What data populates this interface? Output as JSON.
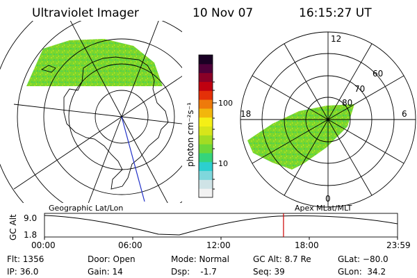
{
  "header": {
    "instrument": "Ultraviolet Imager",
    "date": "10 Nov 07",
    "time": "16:15:27 UT"
  },
  "colorbar": {
    "unit_label": "photon cm⁻²s⁻¹",
    "tick_100": "100",
    "tick_10": "10",
    "colors": [
      "#f2f2f2",
      "#cfe3e6",
      "#7fd7dc",
      "#2ccfcf",
      "#35d47c",
      "#6cd73a",
      "#a2dc23",
      "#d7e51a",
      "#f5ef16",
      "#f2b60c",
      "#ee7a0b",
      "#e43008",
      "#c0000f",
      "#8a0027",
      "#4e003a",
      "#1a0024"
    ]
  },
  "left_map": {
    "caption": "Geographic Lat/Lon",
    "fill_color": "#6fd232"
  },
  "right_map": {
    "caption": "Apex MLat/MLT",
    "mlt_top": "12",
    "mlt_left": "18",
    "mlt_right": "6",
    "mlt_bottom": "0",
    "lat_60": "60",
    "lat_70": "70",
    "lat_80": "80",
    "fill_color": "#6fd232"
  },
  "altitude_plot": {
    "ylabel": "GC Alt",
    "y_top": "9.0",
    "y_bottom": "1.8",
    "x_ticks": [
      "00:00",
      "06:00",
      "12:00",
      "18:00",
      "23:59"
    ],
    "marker_time_fraction": 0.677,
    "marker_color": "#cc0000"
  },
  "info": {
    "flt": "Flt: 1356",
    "ip": "IP: 36.0",
    "door": "Door: Open",
    "gain": "Gain: 14",
    "mode": "Mode: Normal",
    "dsp": "Dsp:    -1.7",
    "gcalt": "GC Alt: 8.7 Re",
    "seq": "Seq: 39",
    "glat": "GLat: −80.0",
    "glon": "GLon:  34.2"
  }
}
